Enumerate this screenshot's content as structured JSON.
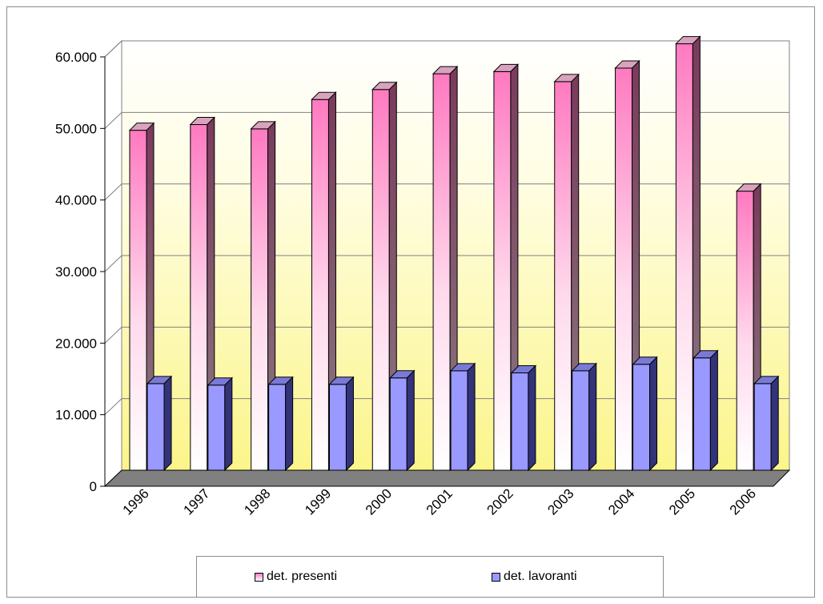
{
  "chart_data": {
    "type": "bar",
    "title": "",
    "xlabel": "",
    "ylabel": "",
    "categories": [
      "1996",
      "1997",
      "1998",
      "1999",
      "2000",
      "2001",
      "2002",
      "2003",
      "2004",
      "2005",
      "2006"
    ],
    "series": [
      {
        "name": "det. presenti",
        "values": [
          47500,
          48300,
          47700,
          51800,
          53200,
          55400,
          55700,
          54300,
          56200,
          59600,
          39000
        ],
        "color": "#ff6fb7"
      },
      {
        "name": "det. lavoranti",
        "values": [
          12100,
          11900,
          12000,
          12000,
          12900,
          13900,
          13600,
          13900,
          14800,
          15700,
          12100
        ],
        "color": "#9999ff"
      }
    ],
    "ylim": [
      0,
      60000
    ],
    "yticks": [
      0,
      10000,
      20000,
      30000,
      40000,
      50000,
      60000
    ],
    "ytick_labels": [
      "0",
      "10.000",
      "20.000",
      "30.000",
      "40.000",
      "50.000",
      "60.000"
    ],
    "grid": true,
    "legend_position": "bottom",
    "background": "yellow-to-white gradient"
  }
}
